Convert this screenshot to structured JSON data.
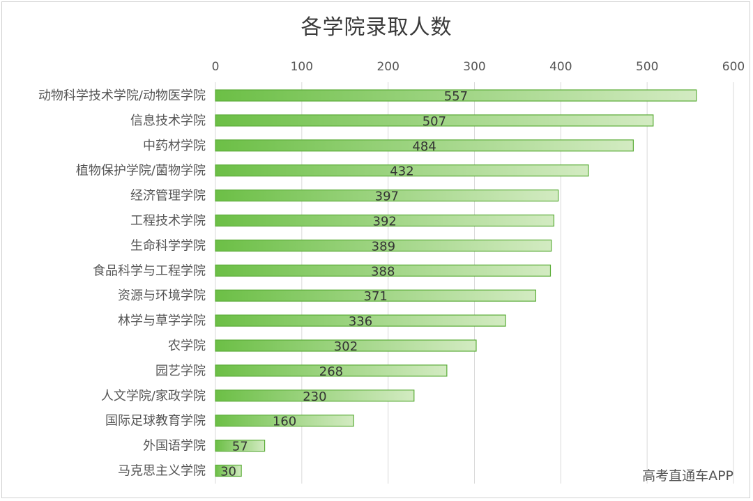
{
  "chart_data": {
    "type": "bar",
    "orientation": "horizontal",
    "title": "各学院录取人数",
    "categories": [
      "动物科学技术学院/动物医学院",
      "信息技术学院",
      "中药材学院",
      "植物保护学院/菌物学院",
      "经济管理学院",
      "工程技术学院",
      "生命科学学院",
      "食品科学与工程学院",
      "资源与环境学院",
      "林学与草学学院",
      "农学院",
      "园艺学院",
      "人文学院/家政学院",
      "国际足球教育学院",
      "外国语学院",
      "马克思主义学院"
    ],
    "values": [
      557,
      507,
      484,
      432,
      397,
      392,
      389,
      388,
      371,
      336,
      302,
      268,
      230,
      160,
      57,
      30
    ],
    "xlim": [
      0,
      600
    ],
    "xticks": [
      0,
      100,
      200,
      300,
      400,
      500,
      600
    ],
    "axis_position": "top",
    "grid": true,
    "legend": "none",
    "colors": {
      "bar_dark": "#6cbf46",
      "bar_light": "#d3ebc2",
      "bar_border": "#5aac37",
      "grid": "#d9d9d9"
    }
  },
  "watermark": "高考直通车APP"
}
